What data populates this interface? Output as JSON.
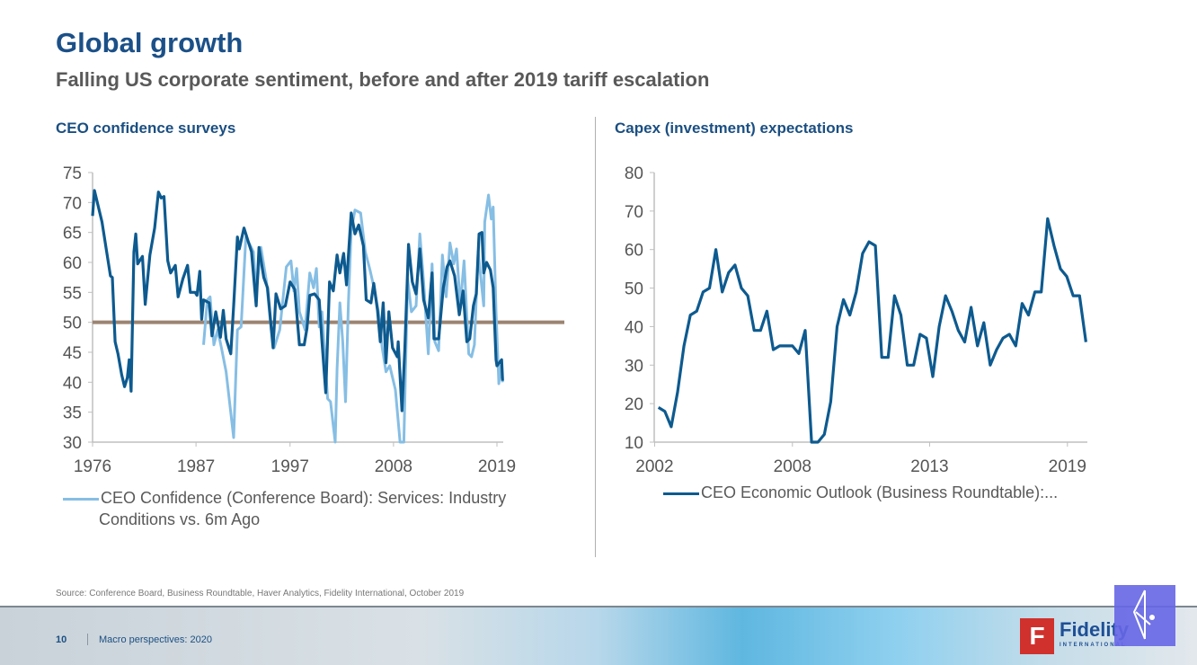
{
  "header": {
    "title": "Global growth",
    "subtitle": "Falling US corporate sentiment, before and after 2019 tariff escalation"
  },
  "footer": {
    "source": "Source: Conference Board, Business Roundtable, Haver Analytics, Fidelity International, October 2019",
    "page_number": "10",
    "deck_title": "Macro perspectives: 2020",
    "logo_text": "Fidelity",
    "logo_subtext": "INTERNATIONAL",
    "logo_mark": "F"
  },
  "chart_data": [
    {
      "type": "line",
      "title": "CEO confidence surveys",
      "ylim": [
        30,
        75
      ],
      "yticks": [
        30,
        35,
        40,
        45,
        50,
        55,
        60,
        65,
        70,
        75
      ],
      "xlim": [
        1976,
        2019.6
      ],
      "xticks": [
        1976,
        1987,
        1997,
        2008,
        2019
      ],
      "grid": false,
      "legend_placement": "bottom",
      "legend": [
        "CEO Confidence (Conference Board): Services: Industry",
        "Conditions vs. 6m Ago"
      ],
      "reference_line": {
        "y": 50,
        "color": "#9c8472"
      },
      "series": [
        {
          "color": "#0d5a8f",
          "points": [
            [
              1976.0,
              67.75
            ],
            [
              1976.2,
              72
            ],
            [
              1977.0,
              66.75
            ],
            [
              1977.5,
              61.75
            ],
            [
              1977.9,
              57.75
            ],
            [
              1978.1,
              57.5
            ],
            [
              1978.4,
              46.75
            ],
            [
              1978.7,
              44.75
            ],
            [
              1979.1,
              41.25
            ],
            [
              1979.4,
              39.25
            ],
            [
              1979.7,
              40.75
            ],
            [
              1979.9,
              43.75
            ],
            [
              1980.1,
              38.5
            ],
            [
              1980.4,
              61.75
            ],
            [
              1980.6,
              64.75
            ],
            [
              1980.8,
              59.75
            ],
            [
              1981.3,
              61
            ],
            [
              1981.6,
              53
            ],
            [
              1982.1,
              61.25
            ],
            [
              1982.6,
              65.75
            ],
            [
              1983.0,
              71.75
            ],
            [
              1983.3,
              70.75
            ],
            [
              1983.6,
              71
            ],
            [
              1984.0,
              60.25
            ],
            [
              1984.3,
              58.25
            ],
            [
              1984.8,
              59.5
            ],
            [
              1985.1,
              54.25
            ],
            [
              1985.6,
              57.25
            ],
            [
              1986.1,
              59.5
            ],
            [
              1986.4,
              55
            ],
            [
              1986.9,
              55
            ],
            [
              1987.1,
              54.5
            ],
            [
              1987.4,
              58.5
            ],
            [
              1987.6,
              50.5
            ],
            [
              1987.8,
              53.75
            ],
            [
              1988.4,
              53.25
            ],
            [
              1988.7,
              47.75
            ],
            [
              1989.1,
              51.75
            ],
            [
              1989.6,
              47.5
            ],
            [
              1989.9,
              52
            ],
            [
              1990.2,
              47.25
            ],
            [
              1990.7,
              44.75
            ],
            [
              1991.0,
              52.75
            ],
            [
              1991.4,
              64.25
            ],
            [
              1991.6,
              62.25
            ],
            [
              1992.1,
              65.75
            ],
            [
              1992.6,
              63.25
            ],
            [
              1992.9,
              61.75
            ],
            [
              1993.4,
              52.75
            ],
            [
              1993.7,
              62.5
            ],
            [
              1994.2,
              57.5
            ],
            [
              1994.6,
              55.75
            ],
            [
              1995.2,
              45.75
            ],
            [
              1995.5,
              54.75
            ],
            [
              1996.0,
              52.25
            ],
            [
              1996.5,
              52.75
            ],
            [
              1997.0,
              56.75
            ],
            [
              1997.5,
              55.5
            ],
            [
              1998.0,
              46.25
            ],
            [
              1998.5,
              46.25
            ],
            [
              1998.8,
              49
            ],
            [
              1999.1,
              54.5
            ],
            [
              1999.6,
              54.75
            ],
            [
              2000.1,
              53.75
            ],
            [
              2000.4,
              46.75
            ],
            [
              2000.8,
              38.25
            ],
            [
              2001.2,
              56.75
            ],
            [
              2001.6,
              55.25
            ],
            [
              2002.0,
              61.25
            ],
            [
              2002.3,
              58.25
            ],
            [
              2002.7,
              61.5
            ],
            [
              2003.0,
              56.25
            ],
            [
              2003.5,
              68.25
            ],
            [
              2003.9,
              64.75
            ],
            [
              2004.3,
              66.25
            ],
            [
              2004.8,
              62.75
            ],
            [
              2005.1,
              53.75
            ],
            [
              2005.6,
              53.25
            ],
            [
              2005.9,
              56.5
            ],
            [
              2006.3,
              52
            ],
            [
              2006.6,
              46.75
            ],
            [
              2006.9,
              53.25
            ],
            [
              2007.2,
              43.25
            ],
            [
              2007.5,
              51.75
            ],
            [
              2007.9,
              45.75
            ],
            [
              2008.4,
              44.25
            ],
            [
              2008.5,
              46.75
            ],
            [
              2008.9,
              35.25
            ],
            [
              2009.2,
              45.25
            ],
            [
              2009.6,
              63
            ],
            [
              2010.0,
              56.75
            ],
            [
              2010.4,
              54.75
            ],
            [
              2010.8,
              62.25
            ],
            [
              2011.2,
              53.75
            ],
            [
              2011.7,
              50.75
            ],
            [
              2012.1,
              58.25
            ],
            [
              2012.3,
              47.25
            ],
            [
              2012.8,
              47.25
            ],
            [
              2013.3,
              55.75
            ],
            [
              2013.7,
              59.25
            ],
            [
              2014.0,
              60.25
            ],
            [
              2014.5,
              57.75
            ],
            [
              2015.0,
              51.25
            ],
            [
              2015.4,
              55.25
            ],
            [
              2015.8,
              46.75
            ],
            [
              2016.1,
              47.25
            ],
            [
              2016.5,
              52.75
            ],
            [
              2016.8,
              54.75
            ],
            [
              2017.1,
              64.75
            ],
            [
              2017.4,
              65
            ],
            [
              2017.6,
              58.25
            ],
            [
              2017.9,
              60
            ],
            [
              2018.3,
              58.75
            ],
            [
              2018.6,
              55.75
            ],
            [
              2018.9,
              43.75
            ],
            [
              2019.0,
              42.75
            ],
            [
              2019.5,
              43.75
            ],
            [
              2019.6,
              40.25
            ]
          ]
        },
        {
          "name": "CEO Confidence (Conference Board): Services: Industry Conditions vs. 6m Ago",
          "color": "#86bee4",
          "points": [
            [
              1987.8,
              46.25
            ],
            [
              1988.2,
              53.75
            ],
            [
              1988.5,
              54.25
            ],
            [
              1988.9,
              46.25
            ],
            [
              1989.3,
              48.75
            ],
            [
              1989.7,
              45.75
            ],
            [
              1990.2,
              41.75
            ],
            [
              1991.0,
              30.75
            ],
            [
              1991.4,
              48.75
            ],
            [
              1991.8,
              49.25
            ],
            [
              1992.3,
              64.25
            ],
            [
              1992.8,
              62.75
            ],
            [
              1993.1,
              61.75
            ],
            [
              1993.4,
              54.75
            ],
            [
              1993.9,
              62.5
            ],
            [
              1994.5,
              56.75
            ],
            [
              1995.0,
              48.75
            ],
            [
              1995.3,
              45.75
            ],
            [
              1995.9,
              48.75
            ],
            [
              1996.6,
              59.25
            ],
            [
              1997.1,
              60.25
            ],
            [
              1997.4,
              55.25
            ],
            [
              1997.7,
              59
            ],
            [
              1998.0,
              51.75
            ],
            [
              1998.6,
              48.75
            ],
            [
              1999.1,
              58.25
            ],
            [
              1999.5,
              55.75
            ],
            [
              1999.8,
              59
            ],
            [
              2000.1,
              49.25
            ],
            [
              2000.4,
              51.75
            ],
            [
              2000.7,
              44.25
            ],
            [
              2001.0,
              37.25
            ],
            [
              2001.3,
              36.75
            ],
            [
              2001.8,
              30
            ],
            [
              2002.0,
              42.25
            ],
            [
              2002.3,
              53.25
            ],
            [
              2002.6,
              46.75
            ],
            [
              2002.9,
              36.75
            ],
            [
              2003.2,
              53.25
            ],
            [
              2003.5,
              65.25
            ],
            [
              2003.9,
              68.75
            ],
            [
              2004.5,
              68.25
            ],
            [
              2005.0,
              61.75
            ],
            [
              2005.5,
              58.75
            ],
            [
              2006.0,
              55.25
            ],
            [
              2006.4,
              51.75
            ],
            [
              2006.8,
              45.75
            ],
            [
              2007.2,
              41.75
            ],
            [
              2007.6,
              42.75
            ],
            [
              2008.2,
              38.75
            ],
            [
              2008.7,
              30
            ],
            [
              2009.1,
              30
            ],
            [
              2009.5,
              57.25
            ],
            [
              2009.9,
              51.75
            ],
            [
              2010.4,
              52.75
            ],
            [
              2010.8,
              64.75
            ],
            [
              2011.2,
              56.75
            ],
            [
              2011.7,
              44.75
            ],
            [
              2012.1,
              59.75
            ],
            [
              2012.4,
              46.75
            ],
            [
              2012.8,
              45.25
            ],
            [
              2013.2,
              61.25
            ],
            [
              2013.6,
              54.25
            ],
            [
              2014.0,
              63.25
            ],
            [
              2014.4,
              59.75
            ],
            [
              2014.7,
              62.25
            ],
            [
              2015.1,
              52.75
            ],
            [
              2015.5,
              60.25
            ],
            [
              2016.0,
              44.75
            ],
            [
              2016.3,
              44.25
            ],
            [
              2016.6,
              46.25
            ],
            [
              2017.0,
              61.75
            ],
            [
              2017.6,
              52.75
            ],
            [
              2017.7,
              66.75
            ],
            [
              2018.1,
              71.25
            ],
            [
              2018.4,
              67.25
            ],
            [
              2018.6,
              69.25
            ],
            [
              2018.9,
              51.75
            ],
            [
              2019.2,
              39.75
            ],
            [
              2019.4,
              42.75
            ],
            [
              2019.6,
              40
            ]
          ]
        }
      ]
    },
    {
      "type": "line",
      "title": "Capex (investment) expectations",
      "ylim": [
        10,
        80
      ],
      "yticks": [
        10,
        20,
        30,
        40,
        50,
        60,
        70,
        80
      ],
      "xticks": [
        {
          "label": "2002",
          "index": -0.6
        },
        {
          "label": "2008",
          "index": 21
        },
        {
          "label": "2013",
          "index": 42.5
        },
        {
          "label": "2019",
          "index": 64.1
        }
      ],
      "grid": false,
      "legend_placement": "bottom",
      "legend": [
        "CEO Economic Outlook (Business Roundtable):..."
      ],
      "series": [
        {
          "name": "CEO Economic Outlook (Business Roundtable):...",
          "color": "#0d5a8f",
          "values": [
            19,
            18,
            14,
            23,
            35,
            43,
            44,
            49,
            50,
            60,
            49,
            54,
            56,
            50,
            48,
            39,
            39,
            44,
            34,
            35,
            35,
            35,
            33,
            39,
            10,
            10,
            12,
            20.5,
            40,
            47,
            43,
            49,
            59,
            62,
            61,
            32,
            32,
            48,
            43,
            30,
            30,
            38,
            37,
            27,
            40,
            48,
            44,
            39,
            36,
            45,
            35,
            41,
            30,
            34,
            37,
            38,
            35,
            46,
            43,
            49,
            49,
            68,
            61,
            55,
            53,
            48,
            48,
            36
          ]
        }
      ]
    }
  ]
}
